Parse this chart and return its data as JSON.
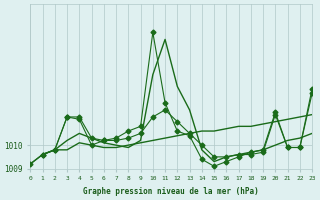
{
  "bg_color": "#dff0f0",
  "line_color": "#1a6b1a",
  "grid_color": "#b0c8c8",
  "xlabel": "Graphe pression niveau de la mer (hPa)",
  "xlabel_color": "#1a5c1a",
  "ylabel_color": "#1a5c1a",
  "title": "",
  "xlim": [
    0,
    23
  ],
  "ylim": [
    1009.0,
    1016.0
  ],
  "yticks": [
    1009,
    1010
  ],
  "xticks": [
    0,
    1,
    2,
    3,
    4,
    5,
    6,
    7,
    8,
    9,
    10,
    11,
    12,
    13,
    14,
    15,
    16,
    17,
    18,
    19,
    20,
    21,
    22,
    23
  ],
  "series1_x": [
    0,
    1,
    2,
    3,
    4,
    5,
    6,
    7,
    8,
    9,
    10,
    11,
    12,
    13,
    14,
    15,
    16,
    17,
    18,
    19,
    20,
    21,
    22,
    23
  ],
  "series1_y": [
    1009.2,
    1009.6,
    1009.8,
    1010.2,
    1010.5,
    1010.3,
    1010.1,
    1010.0,
    1009.9,
    1010.2,
    1013.0,
    1014.5,
    1012.5,
    1011.5,
    1009.8,
    1009.3,
    1009.5,
    1009.6,
    1009.7,
    1009.8,
    1010.0,
    1010.2,
    1010.3,
    1010.5
  ],
  "series2_x": [
    1,
    2,
    3,
    4,
    5,
    6,
    7,
    8,
    9,
    10,
    11,
    12,
    13,
    14,
    15,
    16,
    17,
    18,
    19,
    20,
    21,
    22,
    23
  ],
  "series2_y": [
    1009.6,
    1009.8,
    1011.2,
    1011.1,
    1010.0,
    1010.2,
    1010.2,
    1010.3,
    1010.5,
    1011.2,
    1011.5,
    1011.0,
    1010.5,
    1010.0,
    1009.5,
    1009.5,
    1009.6,
    1009.6,
    1009.7,
    1011.3,
    1009.9,
    1009.9,
    1012.2
  ],
  "series3_x": [
    0,
    1,
    2,
    3,
    4,
    5,
    6,
    7,
    8,
    9,
    10,
    11,
    12,
    13,
    14,
    15,
    16,
    17,
    18,
    19,
    20,
    21,
    22,
    23
  ],
  "series3_y": [
    1009.2,
    1009.6,
    1009.8,
    1011.2,
    1011.2,
    1010.3,
    1010.2,
    1010.3,
    1010.6,
    1010.8,
    1014.8,
    1011.8,
    1010.6,
    1010.4,
    1009.4,
    1009.1,
    1009.3,
    1009.5,
    1009.7,
    1009.8,
    1011.4,
    1009.9,
    1009.9,
    1012.4
  ],
  "series4_x": [
    1,
    2,
    3,
    4,
    5,
    6,
    7,
    8,
    9,
    10,
    11,
    12,
    13,
    14,
    15,
    16,
    17,
    18,
    19,
    20,
    21,
    22,
    23
  ],
  "series4_y": [
    1009.6,
    1009.8,
    1009.8,
    1010.1,
    1010.0,
    1009.9,
    1009.9,
    1010.0,
    1010.1,
    1010.2,
    1010.3,
    1010.4,
    1010.5,
    1010.6,
    1010.6,
    1010.7,
    1010.8,
    1010.8,
    1010.9,
    1011.0,
    1011.1,
    1011.2,
    1011.3
  ]
}
